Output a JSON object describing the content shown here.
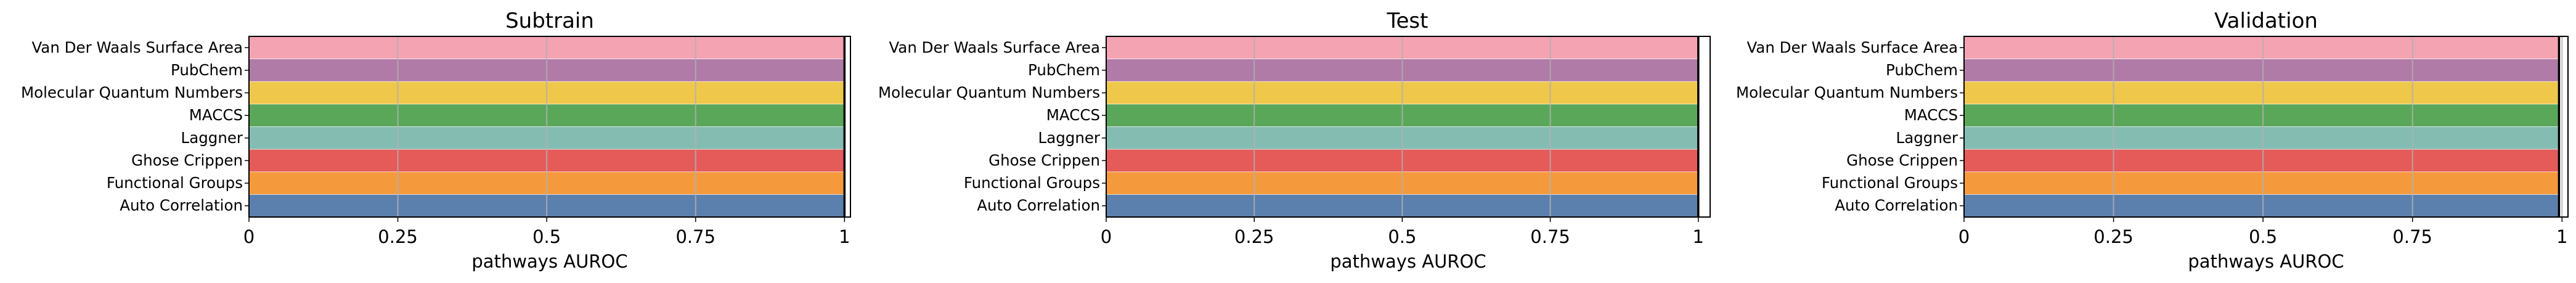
{
  "chart_data": [
    {
      "type": "bar",
      "orientation": "horizontal",
      "title": "Subtrain",
      "xlabel": "pathways AUROC",
      "ylabel": "",
      "categories": [
        "Van Der Waals Surface Area",
        "PubChem",
        "Molecular Quantum Numbers",
        "MACCS",
        "Laggner",
        "Ghose Crippen",
        "Functional Groups",
        "Auto Correlation"
      ],
      "values": [
        1,
        1,
        1,
        1,
        1,
        1,
        1,
        1
      ],
      "xlim": [
        0,
        1.01
      ],
      "xticks": [
        0,
        0.25,
        0.5,
        0.75,
        1
      ],
      "xtick_labels": [
        "0",
        "0.25",
        "0.5",
        "0.75",
        "1"
      ],
      "grid": "vertical",
      "reference_line": 1
    },
    {
      "type": "bar",
      "orientation": "horizontal",
      "title": "Test",
      "xlabel": "pathways AUROC",
      "ylabel": "",
      "categories": [
        "Van Der Waals Surface Area",
        "PubChem",
        "Molecular Quantum Numbers",
        "MACCS",
        "Laggner",
        "Ghose Crippen",
        "Functional Groups",
        "Auto Correlation"
      ],
      "values": [
        1,
        1,
        1,
        1,
        1,
        1,
        1,
        1
      ],
      "xlim": [
        0,
        1.02
      ],
      "xticks": [
        0,
        0.25,
        0.5,
        0.75,
        1
      ],
      "xtick_labels": [
        "0",
        "0.25",
        "0.5",
        "0.75",
        "1"
      ],
      "grid": "vertical",
      "reference_line": 1
    },
    {
      "type": "bar",
      "orientation": "horizontal",
      "title": "Validation",
      "xlabel": "pathways AUROC",
      "ylabel": "",
      "categories": [
        "Van Der Waals Surface Area",
        "PubChem",
        "Molecular Quantum Numbers",
        "MACCS",
        "Laggner",
        "Ghose Crippen",
        "Functional Groups",
        "Auto Correlation"
      ],
      "values": [
        0.995,
        0.995,
        0.995,
        0.995,
        0.995,
        0.995,
        0.995,
        0.995
      ],
      "xlim": [
        0,
        1.01
      ],
      "xticks": [
        0,
        0.25,
        0.5,
        0.75,
        1
      ],
      "xtick_labels": [
        "0",
        "0.25",
        "0.5",
        "0.75",
        "1"
      ],
      "grid": "vertical",
      "reference_line": 0.995
    }
  ],
  "colors": {
    "bars": [
      "#f4a3b3",
      "#b07ba7",
      "#efc74a",
      "#5aa75a",
      "#84bcb2",
      "#e45b59",
      "#f59a3c",
      "#5b80ad"
    ],
    "grid": "#b0b0b0",
    "axis": "#000000"
  }
}
